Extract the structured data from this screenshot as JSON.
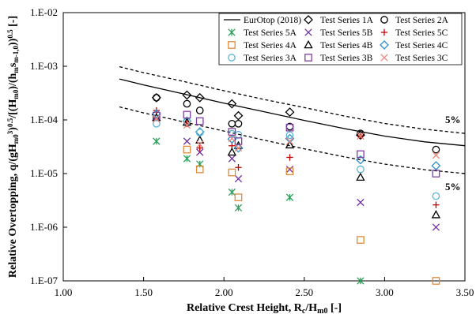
{
  "chart_data": {
    "type": "scatter",
    "title": "",
    "xlabel": "Relative Crest Height, R",
    "xlabel_sub": "c",
    "xlabel_mid": "/H",
    "xlabel_sub2": "m0",
    "xlabel_unit": "[-]",
    "ylabel": "Relative Overtopping, q/(gH",
    "ylabel_sub1": "m0",
    "ylabel_sup1": "3",
    "ylabel_mid": ")",
    "ylabel_sup2": "0.5",
    "ylabel_mid2": "/[(H",
    "ylabel_sub3": "m0",
    "ylabel_mid3": ")/(h",
    "ylabel_sub4": "m",
    "ylabel_mid4": "s",
    "ylabel_sub5": "m-1,0",
    "ylabel_mid5": "))",
    "ylabel_sup3": "0.5",
    "ylabel_unit": "[-]",
    "xlim": [
      1.0,
      3.5
    ],
    "ylim": [
      1e-07,
      0.01
    ],
    "y_scale": "log",
    "x_ticks": [
      "1.00",
      "1.50",
      "2.00",
      "2.50",
      "3.00",
      "3.50"
    ],
    "y_ticks": [
      "1.E-07",
      "1.E-06",
      "1.E-05",
      "1.E-04",
      "1.E-03",
      "1.E-02"
    ],
    "grid": false,
    "legend_position": "top-right",
    "annotations": [
      "5%",
      "5%"
    ],
    "lines": [
      {
        "name": "EurOtop (2018)",
        "style": "solid",
        "color": "#000000",
        "x": [
          1.35,
          1.5,
          1.75,
          2.0,
          2.25,
          2.5,
          2.75,
          3.0,
          3.25,
          3.5
        ],
        "y": [
          0.00058,
          0.00045,
          0.000305,
          0.000205,
          0.000142,
          9.8e-05,
          6.9e-05,
          5e-05,
          3.9e-05,
          3.3e-05
        ]
      },
      {
        "name": "",
        "style": "dashed",
        "color": "#000000",
        "x": [
          1.35,
          1.5,
          1.75,
          2.0,
          2.25,
          2.5,
          2.75,
          3.0,
          3.25,
          3.5
        ],
        "y": [
          0.00098,
          0.00076,
          0.00052,
          0.00035,
          0.00024,
          0.00017,
          0.000118,
          8.6e-05,
          6.7e-05,
          5.6e-05
        ]
      },
      {
        "name": "",
        "style": "dashed",
        "color": "#000000",
        "x": [
          1.35,
          1.5,
          1.75,
          2.0,
          2.25,
          2.5,
          2.75,
          3.0,
          3.25,
          3.5
        ],
        "y": [
          0.000175,
          0.000135,
          9.2e-05,
          6.2e-05,
          4.2e-05,
          2.9e-05,
          2.05e-05,
          1.5e-05,
          1.18e-05,
          1e-05
        ]
      }
    ],
    "series": [
      {
        "name": "Test Series 1A",
        "marker": "diamond",
        "color": "#000000",
        "x": [
          1.58,
          1.77,
          1.85,
          2.05,
          2.09,
          2.41,
          2.85,
          3.32
        ],
        "y": [
          0.00026,
          0.00029,
          0.00026,
          0.0002,
          0.00012,
          0.00014,
          5.2e-05,
          null
        ]
      },
      {
        "name": "Test Series 2A",
        "marker": "circle",
        "color": "#000000",
        "x": [
          1.58,
          1.77,
          1.85,
          2.05,
          2.09,
          2.41,
          2.85,
          3.32
        ],
        "y": [
          0.00026,
          0.0002,
          0.00015,
          8.5e-05,
          8.5e-05,
          7.5e-05,
          5.6e-05,
          2.8e-05
        ]
      },
      {
        "name": "Test Series 5A",
        "marker": "asterisk",
        "color": "#2ca05a",
        "x": [
          1.58,
          1.77,
          1.85,
          2.05,
          2.09,
          2.41,
          2.85
        ],
        "y": [
          4e-05,
          1.9e-05,
          1.5e-05,
          4.5e-06,
          2.3e-06,
          3.6e-06,
          1e-07
        ]
      },
      {
        "name": "Test Series 5B",
        "marker": "x",
        "color": "#7030a0",
        "x": [
          1.58,
          1.77,
          1.85,
          2.05,
          2.09,
          2.41,
          2.85,
          3.32
        ],
        "y": [
          0.00011,
          4e-05,
          2.5e-05,
          1.9e-05,
          8e-06,
          1.2e-05,
          2.9e-06,
          1e-06
        ]
      },
      {
        "name": "Test Series 5C",
        "marker": "plus",
        "color": "#c00000",
        "x": [
          1.58,
          1.77,
          1.85,
          2.05,
          2.09,
          2.41,
          2.85,
          3.32
        ],
        "y": [
          0.00015,
          8.5e-05,
          3e-05,
          3.3e-05,
          1.3e-05,
          2e-05,
          5e-05,
          2.6e-06
        ]
      },
      {
        "name": "Test Series 4A",
        "marker": "square",
        "color": "#e08a3a",
        "x": [
          1.58,
          1.77,
          1.85,
          2.05,
          2.09,
          2.41,
          2.85,
          3.32
        ],
        "y": [
          null,
          2.8e-05,
          1.2e-05,
          1.05e-05,
          3.6e-06,
          1.1e-05,
          5.8e-07,
          1e-07
        ]
      },
      {
        "name": "Test Series 4B",
        "marker": "triangle",
        "color": "#000000",
        "x": [
          1.58,
          1.77,
          1.85,
          2.05,
          2.09,
          2.41,
          2.85,
          3.32
        ],
        "y": [
          0.00011,
          9e-05,
          4.2e-05,
          2.5e-05,
          3.3e-05,
          3.4e-05,
          8.5e-06,
          1.7e-06
        ]
      },
      {
        "name": "Test Series 4C",
        "marker": "diamond",
        "color": "#2e8fc9",
        "x": [
          1.58,
          1.77,
          1.85,
          2.05,
          2.09,
          2.41,
          2.85,
          3.32
        ],
        "y": [
          0.00013,
          9.5e-05,
          6e-05,
          4.4e-05,
          3e-05,
          4.5e-05,
          1.8e-05,
          1.4e-05
        ]
      },
      {
        "name": "Test Series 3A",
        "marker": "circle",
        "color": "#5ab4d6",
        "x": [
          1.58,
          1.77,
          1.85,
          2.05,
          2.09,
          2.41,
          2.85,
          3.32
        ],
        "y": [
          8.5e-05,
          9.5e-05,
          5.8e-05,
          5.5e-05,
          5.3e-05,
          5.2e-05,
          1.2e-05,
          3.8e-06
        ]
      },
      {
        "name": "Test Series 3B",
        "marker": "square",
        "color": "#7f3fa0",
        "x": [
          1.58,
          1.77,
          1.85,
          2.05,
          2.09,
          2.41,
          2.85,
          3.32
        ],
        "y": [
          0.00012,
          0.000125,
          9.5e-05,
          6e-05,
          4e-05,
          7.2e-05,
          2.3e-05,
          1e-05
        ]
      },
      {
        "name": "Test Series 3C",
        "marker": "x",
        "color": "#e8857a",
        "x": [
          1.58,
          1.77,
          1.85,
          2.05,
          2.09,
          2.41,
          2.85,
          3.32
        ],
        "y": [
          0.000105,
          8e-05,
          3.5e-05,
          4.5e-05,
          3e-05,
          4e-05,
          5e-05,
          2.2e-05
        ]
      }
    ]
  }
}
